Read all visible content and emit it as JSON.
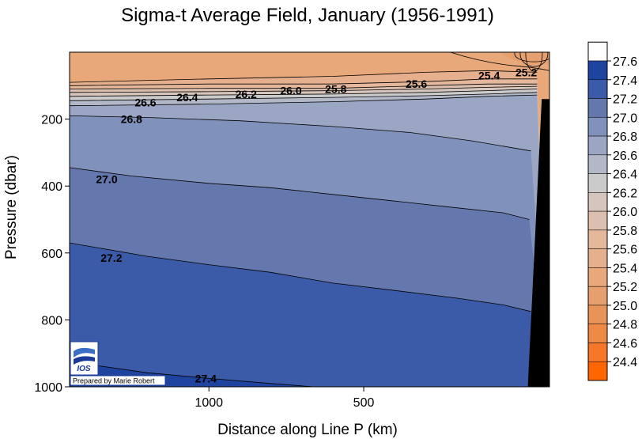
{
  "chart_data": {
    "type": "contour",
    "title": "Sigma-t Average Field,  January (1956-1991)",
    "xlabel": "Distance along Line P  (km)",
    "ylabel": "Pressure  (dbar)",
    "x_axis": {
      "direction": "decreasing",
      "range": [
        1450,
        -100
      ],
      "ticks": [
        1000,
        500
      ],
      "tick_labels": [
        "1000",
        "500"
      ]
    },
    "y_axis": {
      "direction": "increasing-downward",
      "range": [
        0,
        1000
      ],
      "ticks": [
        200,
        400,
        600,
        800,
        1000
      ],
      "tick_labels": [
        "200",
        "400",
        "600",
        "800",
        "1000"
      ]
    },
    "legend": {
      "placement": "right",
      "levels": [
        "24.4",
        "24.6",
        "24.8",
        "25.0",
        "25.2",
        "25.4",
        "25.6",
        "25.8",
        "26.0",
        "26.2",
        "26.4",
        "26.6",
        "26.8",
        "27.0",
        "27.2",
        "27.4",
        "27.6"
      ],
      "colors": [
        "#ff6600",
        "#f5782a",
        "#ee8a45",
        "#e89358",
        "#e6a070",
        "#e8a87a",
        "#e6b08e",
        "#e5b89c",
        "#dcbfae",
        "#d6c5bc",
        "#cbcbcb",
        "#b2b8c8",
        "#9aa6c3",
        "#8091bb",
        "#6478ae",
        "#3b5aa8",
        "#1e44a0",
        "#ffffff"
      ]
    },
    "contour_labels": [
      {
        "text": "25.2",
        "x": -25,
        "p": 60
      },
      {
        "text": "25.4",
        "x": 95,
        "p": 70
      },
      {
        "text": "25.6",
        "x": 330,
        "p": 95
      },
      {
        "text": "25.8",
        "x": 590,
        "p": 110
      },
      {
        "text": "26.0",
        "x": 735,
        "p": 115
      },
      {
        "text": "26.2",
        "x": 880,
        "p": 125
      },
      {
        "text": "26.4",
        "x": 1070,
        "p": 135
      },
      {
        "text": "26.6",
        "x": 1205,
        "p": 150
      },
      {
        "text": "26.8",
        "x": 1250,
        "p": 200
      },
      {
        "text": "27.0",
        "x": 1330,
        "p": 380
      },
      {
        "text": "27.2",
        "x": 1315,
        "p": 615
      },
      {
        "text": "27.4",
        "x": 1010,
        "p": 975
      }
    ],
    "contours": [
      {
        "level": 25.4,
        "points": [
          [
            1450,
            90
          ],
          [
            1000,
            80
          ],
          [
            600,
            72
          ],
          [
            300,
            60
          ],
          [
            100,
            55
          ],
          [
            -60,
            60
          ]
        ]
      },
      {
        "level": 25.6,
        "points": [
          [
            1450,
            100
          ],
          [
            1000,
            95
          ],
          [
            600,
            95
          ],
          [
            300,
            88
          ],
          [
            100,
            80
          ],
          [
            -60,
            80
          ]
        ]
      },
      {
        "level": 25.8,
        "points": [
          [
            1450,
            110
          ],
          [
            1000,
            108
          ],
          [
            600,
            108
          ],
          [
            300,
            100
          ],
          [
            100,
            95
          ],
          [
            -60,
            95
          ]
        ]
      },
      {
        "level": 26.0,
        "points": [
          [
            1450,
            120
          ],
          [
            1000,
            118
          ],
          [
            600,
            115
          ],
          [
            300,
            110
          ],
          [
            100,
            105
          ],
          [
            -60,
            102
          ]
        ]
      },
      {
        "level": 26.2,
        "points": [
          [
            1450,
            132
          ],
          [
            1000,
            128
          ],
          [
            600,
            125
          ],
          [
            300,
            120
          ],
          [
            100,
            115
          ],
          [
            -60,
            110
          ]
        ]
      },
      {
        "level": 26.4,
        "points": [
          [
            1450,
            145
          ],
          [
            1000,
            140
          ],
          [
            600,
            135
          ],
          [
            300,
            130
          ],
          [
            100,
            125
          ],
          [
            -60,
            120
          ]
        ]
      },
      {
        "level": 26.6,
        "points": [
          [
            1450,
            160
          ],
          [
            1000,
            155
          ],
          [
            600,
            148
          ],
          [
            300,
            140
          ],
          [
            100,
            132
          ],
          [
            -60,
            128
          ]
        ]
      },
      {
        "level": 26.8,
        "points": [
          [
            1450,
            190
          ],
          [
            1200,
            195
          ],
          [
            900,
            205
          ],
          [
            600,
            222
          ],
          [
            350,
            240
          ],
          [
            150,
            265
          ],
          [
            -40,
            295
          ]
        ]
      },
      {
        "level": 27.0,
        "points": [
          [
            1450,
            345
          ],
          [
            1250,
            370
          ],
          [
            1000,
            392
          ],
          [
            800,
            405
          ],
          [
            600,
            425
          ],
          [
            400,
            445
          ],
          [
            200,
            465
          ],
          [
            50,
            480
          ],
          [
            -35,
            500
          ]
        ]
      },
      {
        "level": 27.2,
        "points": [
          [
            1450,
            570
          ],
          [
            1200,
            610
          ],
          [
            1000,
            635
          ],
          [
            800,
            658
          ],
          [
            600,
            690
          ],
          [
            400,
            712
          ],
          [
            200,
            735
          ],
          [
            50,
            755
          ],
          [
            -40,
            775
          ]
        ]
      },
      {
        "level": 27.4,
        "points": [
          [
            1450,
            925
          ],
          [
            1200,
            958
          ],
          [
            1000,
            975
          ],
          [
            800,
            990
          ],
          [
            660,
            1000
          ]
        ]
      }
    ],
    "bathymetry_mask": [
      [
        -30,
        1000
      ],
      [
        -75,
        140
      ],
      [
        -100,
        140
      ],
      [
        -100,
        1000
      ]
    ]
  },
  "logo": {
    "text": "IOS",
    "credit": "Prepared by Marie Robert"
  }
}
